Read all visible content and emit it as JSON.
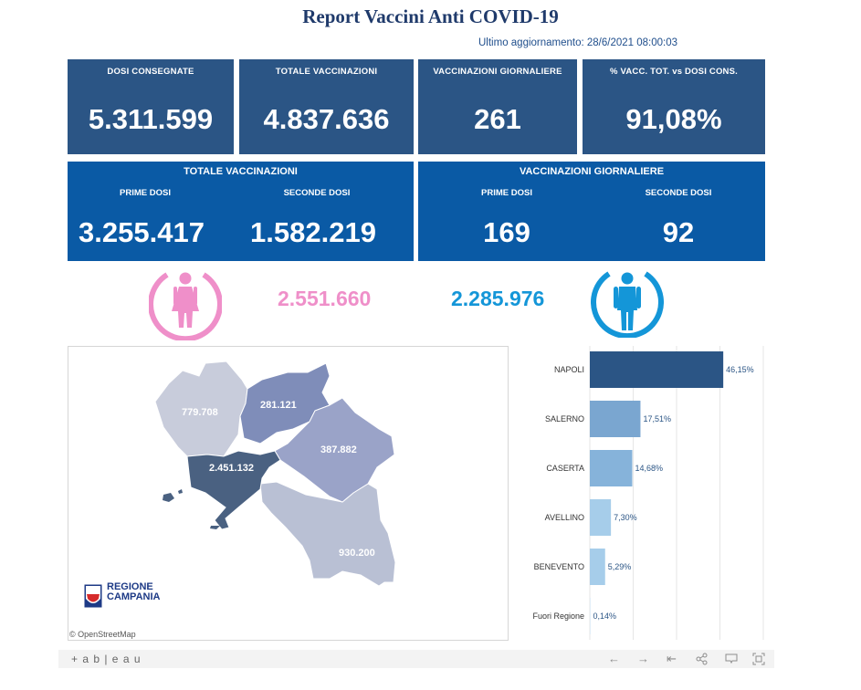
{
  "title": "Report Vaccini Anti COVID-19",
  "updated": "Ultimo aggiornamento: 28/6/2021 08:00:03",
  "top_cards": [
    {
      "label": "DOSI  CONSEGNATE",
      "value": "5.311.599"
    },
    {
      "label": "TOTALE VACCINAZIONI",
      "value": "4.837.636"
    },
    {
      "label": "VACCINAZIONI GIORNALIERE",
      "value": "261"
    },
    {
      "label": "% VACC. TOT. vs DOSI CONS.",
      "value": "91,08%"
    }
  ],
  "totale": {
    "header": "TOTALE VACCINAZIONI",
    "prime_label": "PRIME DOSI",
    "prime_value": "3.255.417",
    "seconde_label": "SECONDE DOSI",
    "seconde_value": "1.582.219"
  },
  "giornaliere": {
    "header": "VACCINAZIONI GIORNALIERE",
    "prime_label": "PRIME DOSI",
    "prime_value": "169",
    "seconde_label": "SECONDE DOSI",
    "seconde_value": "92"
  },
  "gender": {
    "female_value": "2.551.660",
    "female_color": "#ef8fc9",
    "female_icon": "female-icon",
    "male_value": "2.285.976",
    "male_color": "#1496d8",
    "male_icon": "male-icon"
  },
  "map": {
    "regions": [
      {
        "name": "caserta",
        "value": "779.708"
      },
      {
        "name": "benevento",
        "value": "281.121"
      },
      {
        "name": "avellino",
        "value": "387.882"
      },
      {
        "name": "napoli",
        "value": "2.451.132"
      },
      {
        "name": "salerno",
        "value": "930.200"
      }
    ],
    "logo_line1": "REGIONE",
    "logo_line2": "CAMPANIA",
    "attribution": "© OpenStreetMap"
  },
  "chart_data": {
    "type": "bar",
    "orientation": "horizontal",
    "categories": [
      "NAPOLI",
      "SALERNO",
      "CASERTA",
      "AVELLINO",
      "BENEVENTO",
      "Fuori Regione"
    ],
    "values": [
      46.15,
      17.51,
      14.68,
      7.3,
      5.29,
      0.14
    ],
    "value_labels": [
      "46,15%",
      "17,51%",
      "14,68%",
      "7,30%",
      "5,29%",
      "0,14%"
    ],
    "colors": [
      "#2b5585",
      "#7aa6d0",
      "#86b3da",
      "#a6cdea",
      "#a6cdea",
      "#c6def0"
    ],
    "xlim": [
      0,
      60
    ]
  },
  "toolbar": {
    "brand": "+ a b | e a u"
  }
}
